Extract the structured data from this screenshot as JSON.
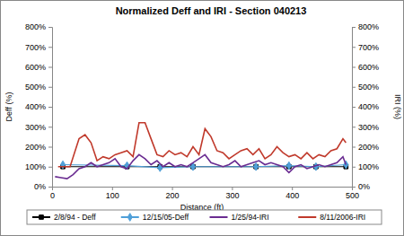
{
  "chart_data": {
    "type": "line",
    "title": "Normalized Deff and IRI - Section 040213",
    "x_label": "Distance (ft)",
    "y_label": "Deff (%)",
    "y2_label": "IRI (%)",
    "xlim": [
      0,
      500
    ],
    "xticks": [
      0,
      100,
      200,
      300,
      400,
      500
    ],
    "ylim": [
      0,
      800
    ],
    "yticks": [
      {
        "value": 0,
        "label": "0%"
      },
      {
        "value": 100,
        "label": "100%"
      },
      {
        "value": 200,
        "label": "200%"
      },
      {
        "value": 300,
        "label": "300%"
      },
      {
        "value": 400,
        "label": "400%"
      },
      {
        "value": 500,
        "label": "500%"
      },
      {
        "value": 600,
        "label": "600%"
      },
      {
        "value": 700,
        "label": "700%"
      },
      {
        "value": 800,
        "label": "800%"
      }
    ],
    "y2lim": [
      0,
      800
    ],
    "y2ticks": [
      {
        "value": 0,
        "label": "0%"
      },
      {
        "value": 100,
        "label": "100%"
      },
      {
        "value": 200,
        "label": "200%"
      },
      {
        "value": 300,
        "label": "300%"
      },
      {
        "value": 400,
        "label": "400%"
      },
      {
        "value": 500,
        "label": "500%"
      },
      {
        "value": 600,
        "label": "600%"
      },
      {
        "value": 700,
        "label": "700%"
      },
      {
        "value": 800,
        "label": "800%"
      }
    ],
    "grid": false,
    "legend": "bottom",
    "series": [
      {
        "name": "2/8/94 - Deff",
        "color": "#000000",
        "marker": "square",
        "line_style": "solid",
        "x": [
          18,
          125,
          180,
          235,
          340,
          395,
          440,
          490
        ],
        "values": [
          100,
          100,
          100,
          100,
          100,
          100,
          100,
          100
        ]
      },
      {
        "name": "12/15/05-Deff",
        "color": "#4f9fd8",
        "marker": "diamond",
        "line_style": "solid",
        "x": [
          18,
          125,
          180,
          235,
          340,
          395,
          440,
          490
        ],
        "values": [
          110,
          105,
          95,
          100,
          100,
          105,
          100,
          110
        ]
      },
      {
        "name": "1/25/94-IRI",
        "color": "#6a2c91",
        "marker": "none",
        "line_style": "solid",
        "axis": "y2",
        "x": [
          5,
          15,
          25,
          35,
          45,
          55,
          65,
          75,
          85,
          95,
          105,
          115,
          125,
          135,
          145,
          155,
          165,
          175,
          185,
          195,
          205,
          215,
          225,
          235,
          245,
          255,
          265,
          275,
          285,
          295,
          305,
          315,
          325,
          335,
          345,
          355,
          365,
          375,
          385,
          395,
          405,
          415,
          425,
          435,
          445,
          455,
          465,
          475,
          485,
          490
        ],
        "values": [
          50,
          45,
          40,
          60,
          90,
          100,
          120,
          100,
          110,
          120,
          140,
          100,
          90,
          130,
          160,
          140,
          110,
          130,
          100,
          120,
          100,
          110,
          100,
          120,
          140,
          160,
          120,
          110,
          100,
          110,
          130,
          100,
          110,
          120,
          130,
          110,
          120,
          110,
          100,
          70,
          100,
          110,
          90,
          100,
          110,
          100,
          110,
          120,
          150,
          110
        ]
      },
      {
        "name": "8/11/2006-IRI",
        "color": "#c0392b",
        "marker": "none",
        "line_style": "solid",
        "axis": "y2",
        "x": [
          10,
          30,
          45,
          55,
          65,
          75,
          85,
          95,
          105,
          115,
          125,
          135,
          145,
          155,
          165,
          175,
          185,
          195,
          205,
          215,
          225,
          235,
          245,
          255,
          265,
          275,
          285,
          295,
          305,
          315,
          325,
          335,
          345,
          355,
          365,
          375,
          385,
          395,
          405,
          415,
          425,
          435,
          445,
          455,
          465,
          475,
          485,
          490
        ],
        "values": [
          100,
          100,
          240,
          260,
          220,
          130,
          150,
          140,
          160,
          170,
          180,
          150,
          320,
          320,
          240,
          160,
          150,
          180,
          160,
          170,
          150,
          200,
          160,
          290,
          250,
          180,
          170,
          140,
          160,
          180,
          190,
          160,
          190,
          140,
          160,
          200,
          170,
          150,
          160,
          140,
          170,
          140,
          160,
          150,
          180,
          190,
          240,
          220
        ]
      }
    ]
  }
}
